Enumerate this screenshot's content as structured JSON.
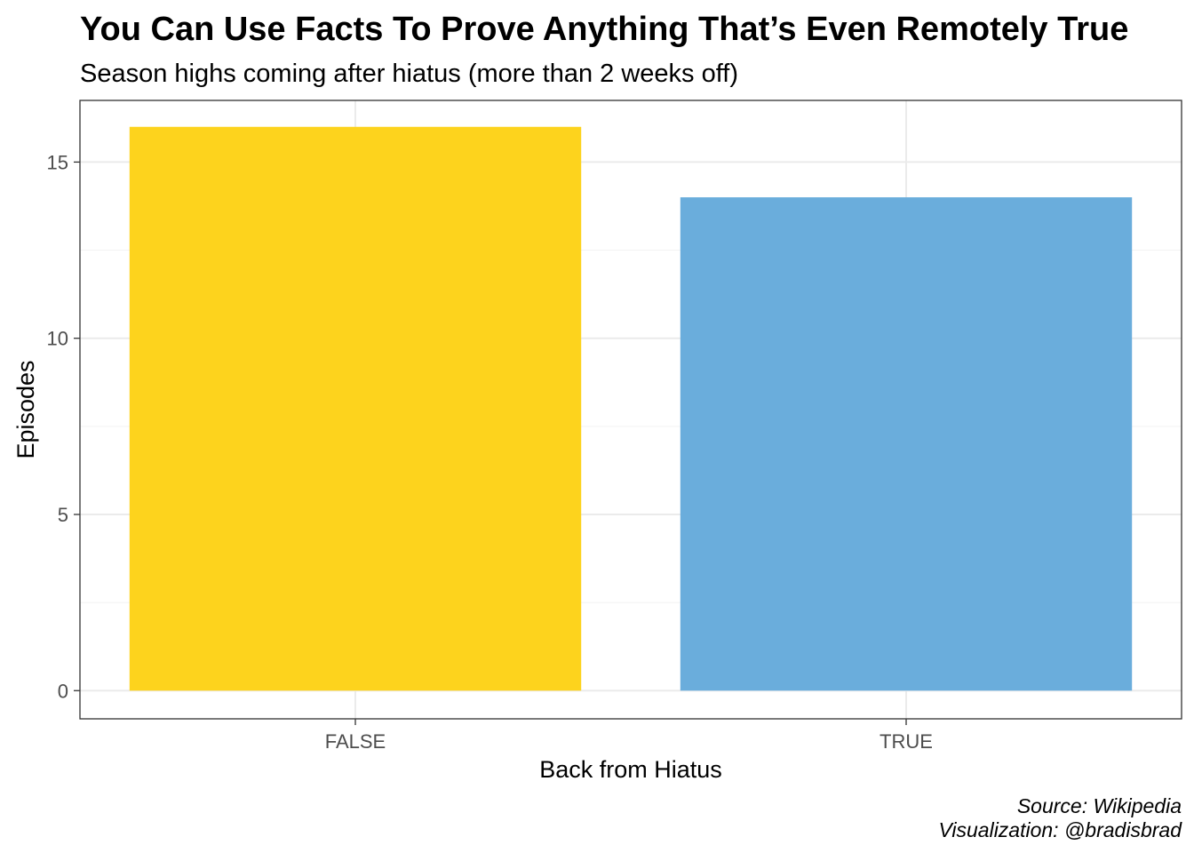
{
  "chart_data": {
    "type": "bar",
    "title": "You Can Use Facts To Prove Anything That’s Even Remotely True",
    "subtitle": "Season highs coming after hiatus (more than 2 weeks off)",
    "xlabel": "Back from Hiatus",
    "ylabel": "Episodes",
    "categories": [
      "FALSE",
      "TRUE"
    ],
    "values": [
      16,
      14
    ],
    "colors": [
      "#FDD31D",
      "#6AADDC"
    ],
    "ylim": [
      -0.8,
      16.75
    ],
    "yticks": [
      0,
      5,
      10,
      15
    ],
    "ytick_labels": [
      "0",
      "5",
      "10",
      "15"
    ],
    "grid": true,
    "legend": "none",
    "caption": {
      "source": "Source: Wikipedia",
      "visualization": "Visualization: @bradisbrad"
    }
  }
}
